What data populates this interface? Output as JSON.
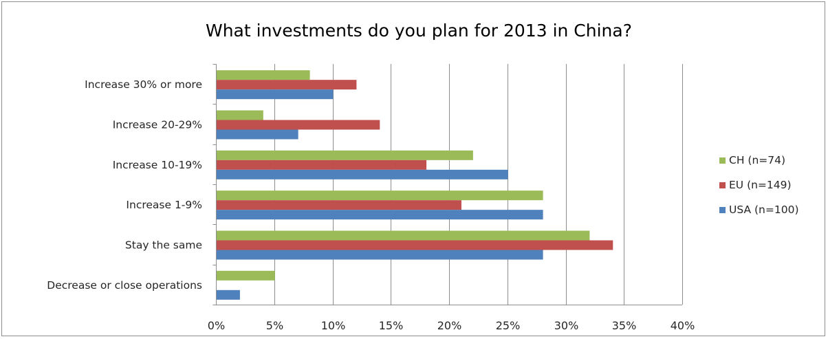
{
  "chart_data": {
    "type": "bar",
    "orientation": "horizontal",
    "title": "What investments do you plan for 2013 in China?",
    "xlabel": "",
    "ylabel": "",
    "categories": [
      "Increase 30% or more",
      "Increase 20-29%",
      "Increase 10-19%",
      "Increase 1-9%",
      "Stay the same",
      "Decrease or close operations"
    ],
    "series": [
      {
        "name": "CH (n=74)",
        "color": "#9bbb59",
        "values": [
          8,
          4,
          22,
          28,
          32,
          5
        ]
      },
      {
        "name": "EU (n=149)",
        "color": "#c0504d",
        "values": [
          12,
          14,
          18,
          21,
          34,
          0
        ]
      },
      {
        "name": "USA (n=100)",
        "color": "#4f81bd",
        "values": [
          10,
          7,
          25,
          28,
          28,
          2
        ]
      }
    ],
    "xlim": [
      0,
      40
    ],
    "x_ticks": [
      "0%",
      "5%",
      "10%",
      "15%",
      "20%",
      "25%",
      "30%",
      "35%",
      "40%"
    ],
    "x_tick_values": [
      0,
      5,
      10,
      15,
      20,
      25,
      30,
      35,
      40
    ],
    "value_unit": "%",
    "grid": true,
    "legend_position": "right"
  }
}
